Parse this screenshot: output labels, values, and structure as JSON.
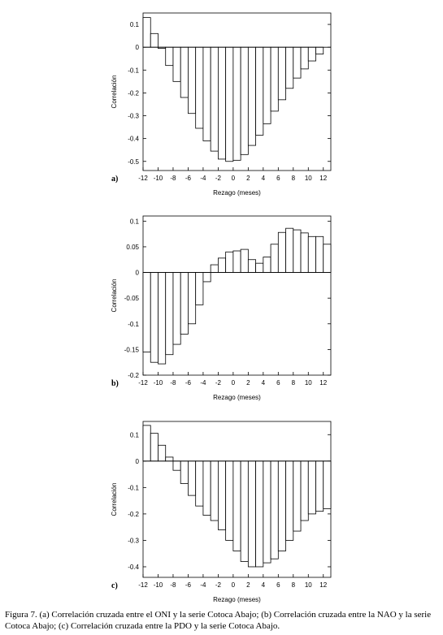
{
  "chart_data": [
    {
      "type": "bar",
      "panel_label": "a)",
      "xlabel": "Rezago (meses)",
      "ylabel": "Correlación",
      "color": "#ffffff",
      "x": [
        -12,
        -11,
        -10,
        -9,
        -8,
        -7,
        -6,
        -5,
        -4,
        -3,
        -2,
        -1,
        0,
        1,
        2,
        3,
        4,
        5,
        6,
        7,
        8,
        9,
        10,
        11
      ],
      "values": [
        0.13,
        0.06,
        -0.005,
        -0.08,
        -0.15,
        -0.22,
        -0.29,
        -0.355,
        -0.41,
        -0.455,
        -0.49,
        -0.5,
        -0.495,
        -0.47,
        -0.43,
        -0.385,
        -0.335,
        -0.28,
        -0.23,
        -0.18,
        -0.135,
        -0.095,
        -0.06,
        -0.03
      ],
      "xlim": [
        -12,
        13
      ],
      "xticks": [
        -12,
        -10,
        -8,
        -6,
        -4,
        -2,
        0,
        2,
        4,
        6,
        8,
        10,
        12
      ],
      "ylim": [
        -0.54,
        0.15
      ],
      "yticks": [
        0.1,
        0,
        -0.1,
        -0.2,
        -0.3,
        -0.4,
        -0.5
      ]
    },
    {
      "type": "bar",
      "panel_label": "b)",
      "xlabel": "Rezago (meses)",
      "ylabel": "Correlación",
      "color": "#ffffff",
      "x": [
        -12,
        -11,
        -10,
        -9,
        -8,
        -7,
        -6,
        -5,
        -4,
        -3,
        -2,
        -1,
        0,
        1,
        2,
        3,
        4,
        5,
        6,
        7,
        8,
        9,
        10,
        11,
        12
      ],
      "values": [
        -0.155,
        -0.175,
        -0.178,
        -0.16,
        -0.14,
        -0.12,
        -0.1,
        -0.063,
        -0.018,
        0.015,
        0.028,
        0.04,
        0.042,
        0.045,
        0.025,
        0.018,
        0.03,
        0.055,
        0.078,
        0.086,
        0.083,
        0.077,
        0.07,
        0.07,
        0.055
      ],
      "xlim": [
        -12,
        13
      ],
      "xticks": [
        -12,
        -10,
        -8,
        -6,
        -4,
        -2,
        0,
        2,
        4,
        6,
        8,
        10,
        12
      ],
      "ylim": [
        -0.2,
        0.11
      ],
      "yticks": [
        0.1,
        0.05,
        0,
        -0.05,
        -0.1,
        -0.15,
        -0.2
      ]
    },
    {
      "type": "bar",
      "panel_label": "c)",
      "xlabel": "Rezago (meses)",
      "ylabel": "Correlación",
      "color": "#ffffff",
      "x": [
        -12,
        -11,
        -10,
        -9,
        -8,
        -7,
        -6,
        -5,
        -4,
        -3,
        -2,
        -1,
        0,
        1,
        2,
        3,
        4,
        5,
        6,
        7,
        8,
        9,
        10,
        11,
        12
      ],
      "values": [
        0.135,
        0.105,
        0.06,
        0.015,
        -0.035,
        -0.085,
        -0.13,
        -0.17,
        -0.205,
        -0.225,
        -0.26,
        -0.3,
        -0.34,
        -0.38,
        -0.4,
        -0.4,
        -0.385,
        -0.37,
        -0.34,
        -0.3,
        -0.265,
        -0.225,
        -0.2,
        -0.19,
        -0.18
      ],
      "xlim": [
        -12,
        13
      ],
      "xticks": [
        -12,
        -10,
        -8,
        -6,
        -4,
        -2,
        0,
        2,
        4,
        6,
        8,
        10,
        12
      ],
      "ylim": [
        -0.44,
        0.15
      ],
      "yticks": [
        0.1,
        0,
        -0.1,
        -0.2,
        -0.3,
        -0.4
      ]
    }
  ],
  "caption": "Figura 7. (a) Correlación cruzada entre el ONI y la serie Cotoca Abajo; (b) Correlación cruzada entre la NAO y la serie Cotoca Abajo; (c) Correlación cruzada entre la PDO y la serie Cotoca Abajo."
}
